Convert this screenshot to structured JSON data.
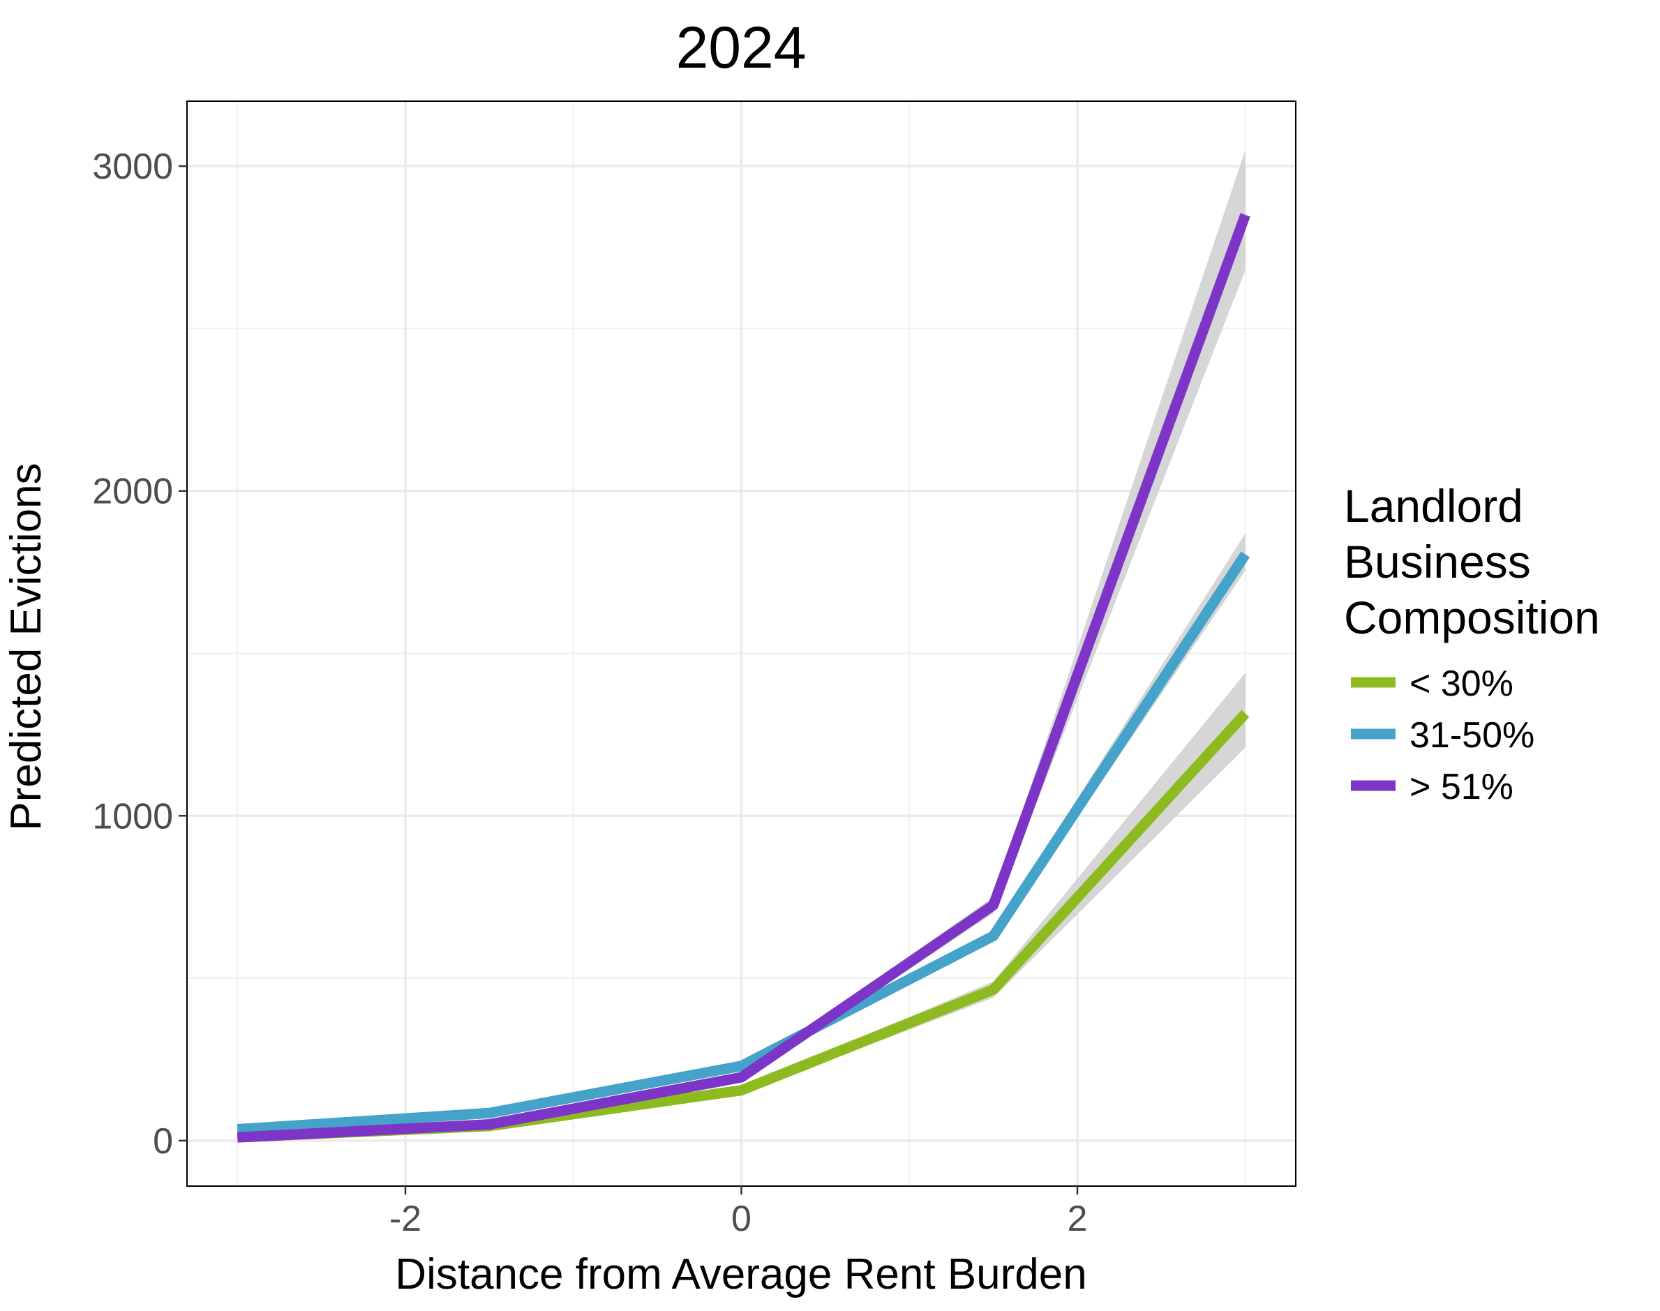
{
  "chart_data": {
    "type": "line",
    "title": "2024",
    "xlabel": "Distance from Average Rent Burden",
    "ylabel": "Predicted Evictions",
    "xlim": [
      -3.3,
      3.3
    ],
    "ylim": [
      -140,
      3200
    ],
    "x_ticks": [
      -2,
      0,
      2
    ],
    "x_tick_labels": [
      "-2",
      "0",
      "2"
    ],
    "y_ticks": [
      0,
      1000,
      2000,
      3000
    ],
    "y_tick_labels": [
      "0",
      "1000",
      "2000",
      "3000"
    ],
    "grid": true,
    "legend": {
      "placement": "right",
      "title_lines": [
        "Landlord",
        "Business",
        "Composition"
      ]
    },
    "ribbon_color": "#d6d6d6",
    "series": [
      {
        "name": "< 30%",
        "color": "#8dbb1f",
        "x": [
          -3,
          -1.5,
          0,
          1.5,
          3
        ],
        "y": [
          10,
          45,
          155,
          465,
          1315
        ],
        "lower": [
          8,
          40,
          145,
          440,
          1210
        ],
        "upper": [
          12,
          50,
          165,
          490,
          1440
        ]
      },
      {
        "name": "31-50%",
        "color": "#45a2c8",
        "x": [
          -3,
          -1.5,
          0,
          1.5,
          3
        ],
        "y": [
          35,
          85,
          230,
          630,
          1805
        ],
        "lower": [
          32,
          80,
          222,
          615,
          1755
        ],
        "upper": [
          38,
          90,
          238,
          645,
          1870
        ]
      },
      {
        "name": "> 51%",
        "color": "#7d35c7",
        "x": [
          -3,
          -1.5,
          0,
          1.5,
          3
        ],
        "y": [
          10,
          50,
          195,
          725,
          2850
        ],
        "lower": [
          8,
          45,
          185,
          700,
          2680
        ],
        "upper": [
          12,
          55,
          205,
          750,
          3050
        ]
      }
    ]
  }
}
